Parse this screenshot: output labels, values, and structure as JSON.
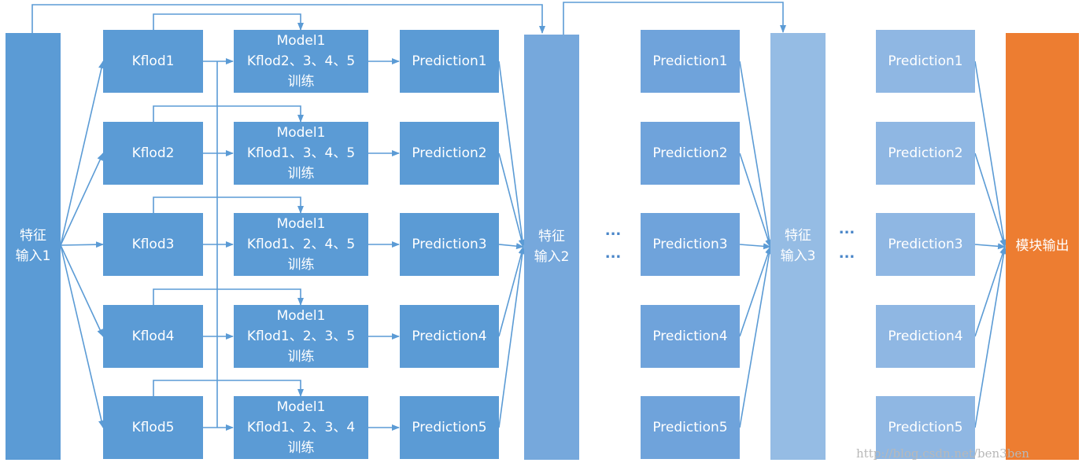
{
  "colors": {
    "col1": "#5b9bd5",
    "col_input2": "#76a8dc",
    "col_pred2": "#6fa3db",
    "col_input3": "#95bce4",
    "col_pred3": "#8fb7e3",
    "output": "#ed7d31",
    "arrow": "#5b9bd5",
    "dots": "#4a86c8"
  },
  "input1": {
    "line1": "特征",
    "line2": "输入1"
  },
  "input2": {
    "line1": "特征",
    "line2": "输入2"
  },
  "input3": {
    "line1": "特征",
    "line2": "输入3"
  },
  "output": {
    "label": "模块输出"
  },
  "kfolds": [
    "Kflod1",
    "Kflod2",
    "Kflod3",
    "Kflod4",
    "Kflod5"
  ],
  "models": [
    {
      "line1": "Model1",
      "line2": "Kflod2、3、4、5",
      "line3": "训练"
    },
    {
      "line1": "Model1",
      "line2": "Kflod1、3、4、5",
      "line3": "训练"
    },
    {
      "line1": "Model1",
      "line2": "Kflod1、2、4、5",
      "line3": "训练"
    },
    {
      "line1": "Model1",
      "line2": "Kflod1、2、3、5",
      "line3": "训练"
    },
    {
      "line1": "Model1",
      "line2": "Kflod1、2、3、4",
      "line3": "训练"
    }
  ],
  "predictions_stage1": [
    "Prediction1",
    "Prediction2",
    "Prediction3",
    "Prediction4",
    "Prediction5"
  ],
  "predictions_stage2": [
    "Prediction1",
    "Prediction2",
    "Prediction3",
    "Prediction4",
    "Prediction5"
  ],
  "predictions_stage3": [
    "Prediction1",
    "Prediction2",
    "Prediction3",
    "Prediction4",
    "Prediction5"
  ],
  "ellipsis": "···",
  "watermark": "http://blog.csdn.net/ben3ben"
}
